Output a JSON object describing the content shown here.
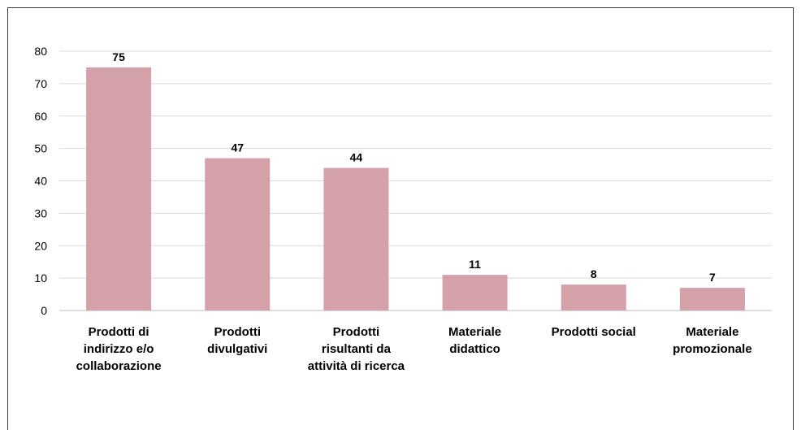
{
  "chart_data": {
    "type": "bar",
    "categories": [
      [
        "Prodotti di",
        "indirizzo e/o",
        "collaborazione"
      ],
      [
        "Prodotti",
        "divulgativi"
      ],
      [
        "Prodotti",
        "risultanti da",
        "attività di ricerca"
      ],
      [
        "Materiale",
        "didattico"
      ],
      [
        "Prodotti social"
      ],
      [
        "Materiale",
        "promozionale"
      ]
    ],
    "values": [
      75,
      47,
      44,
      11,
      8,
      7
    ],
    "ylim": [
      0,
      80
    ],
    "yticks": [
      0,
      10,
      20,
      30,
      40,
      50,
      60,
      70,
      80
    ],
    "grid": true,
    "legend": "none",
    "bar_color": "#d4a1a9",
    "gridline_color": "#d9d9d9",
    "axis_color": "#bfbfbf"
  }
}
